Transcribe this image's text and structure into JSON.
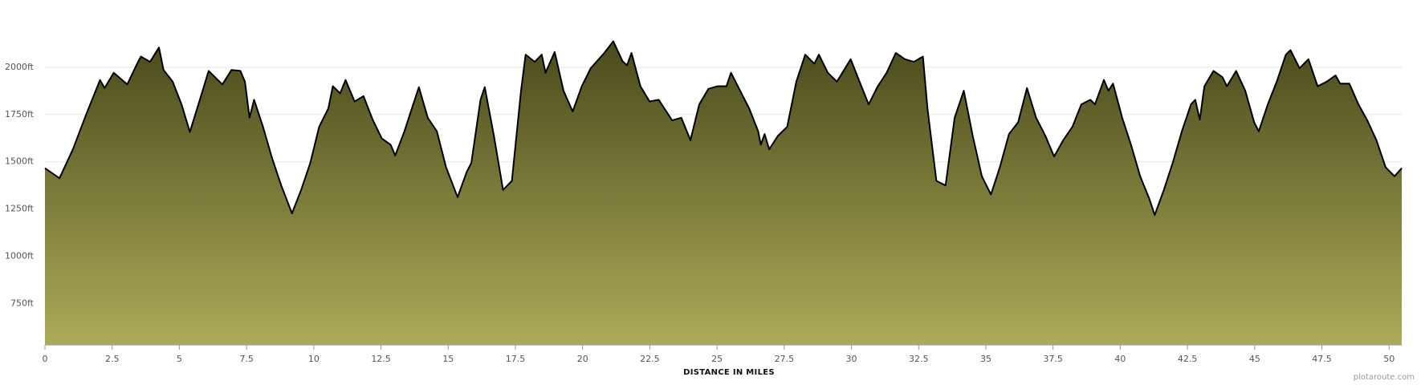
{
  "chart_data": {
    "type": "area",
    "x_label": "DISTANCE IN MILES",
    "credit": "plotaroute.com",
    "fill_gradient": [
      "#4a4a1c",
      "#abab59"
    ],
    "line_color": "#000000",
    "grid": true,
    "xlim": [
      0,
      50.47
    ],
    "ylim": [
      531,
      2250
    ],
    "xticks": [
      0,
      2.5,
      5,
      7.5,
      10,
      12.5,
      15,
      17.5,
      20,
      22.5,
      25,
      27.5,
      30,
      32.5,
      35,
      37.5,
      40,
      42.5,
      45,
      47.5,
      50
    ],
    "yticks": [
      {
        "value": 750,
        "label": "750ft"
      },
      {
        "value": 1000,
        "label": "1000ft"
      },
      {
        "value": 1250,
        "label": "1250ft"
      },
      {
        "value": 1500,
        "label": "1500ft"
      },
      {
        "value": 1750,
        "label": "1750ft"
      },
      {
        "value": 2000,
        "label": "2000ft"
      }
    ],
    "x": [
      0,
      0.54,
      1.04,
      1.55,
      2.05,
      2.22,
      2.56,
      3.06,
      3.4,
      3.57,
      3.91,
      4.24,
      4.41,
      4.75,
      5.08,
      5.39,
      5.76,
      6.09,
      6.6,
      6.94,
      7.27,
      7.44,
      7.61,
      7.78,
      8.11,
      8.45,
      8.79,
      9.19,
      9.53,
      9.87,
      10.2,
      10.54,
      10.71,
      10.98,
      11.18,
      11.52,
      11.85,
      12.19,
      12.53,
      12.86,
      13.03,
      13.37,
      13.7,
      13.91,
      14.24,
      14.58,
      14.92,
      15.35,
      15.69,
      15.86,
      16.2,
      16.36,
      16.7,
      17.04,
      17.37,
      17.71,
      17.88,
      18.22,
      18.48,
      18.62,
      18.96,
      19.29,
      19.63,
      19.97,
      20.3,
      20.81,
      21.14,
      21.48,
      21.65,
      21.82,
      22.15,
      22.49,
      22.83,
      23.33,
      23.67,
      24.01,
      24.34,
      24.68,
      25.02,
      25.35,
      25.52,
      25.86,
      26.2,
      26.53,
      26.63,
      26.77,
      26.94,
      27.27,
      27.61,
      27.95,
      28.28,
      28.62,
      28.79,
      29.12,
      29.46,
      29.97,
      30.3,
      30.64,
      30.98,
      31.31,
      31.65,
      31.99,
      32.32,
      32.66,
      32.83,
      33.16,
      33.5,
      33.84,
      34.18,
      34.51,
      34.85,
      35.19,
      35.52,
      35.86,
      36.2,
      36.53,
      36.87,
      37.21,
      37.54,
      37.88,
      38.22,
      38.55,
      38.89,
      39.06,
      39.39,
      39.56,
      39.73,
      40.07,
      40.4,
      40.74,
      41.08,
      41.28,
      41.62,
      41.95,
      42.29,
      42.63,
      42.79,
      42.96,
      43.13,
      43.47,
      43.8,
      43.97,
      44.31,
      44.65,
      44.98,
      45.15,
      45.49,
      45.82,
      46.16,
      46.33,
      46.67,
      47.0,
      47.34,
      47.68,
      48.01,
      48.18,
      48.52,
      48.86,
      49.19,
      49.53,
      49.87,
      50.2,
      50.47
    ],
    "values": [
      1466,
      1413,
      1566,
      1757,
      1933,
      1890,
      1971,
      1909,
      2010,
      2057,
      2029,
      2105,
      1986,
      1924,
      1804,
      1657,
      1828,
      1981,
      1909,
      1986,
      1981,
      1924,
      1733,
      1828,
      1685,
      1518,
      1375,
      1227,
      1351,
      1494,
      1685,
      1781,
      1900,
      1862,
      1933,
      1819,
      1847,
      1723,
      1623,
      1590,
      1533,
      1661,
      1804,
      1895,
      1733,
      1661,
      1471,
      1313,
      1447,
      1494,
      1828,
      1895,
      1638,
      1351,
      1399,
      1876,
      2067,
      2029,
      2067,
      1971,
      2081,
      1876,
      1766,
      1900,
      1995,
      2076,
      2138,
      2033,
      2010,
      2076,
      1900,
      1819,
      1828,
      1719,
      1733,
      1614,
      1804,
      1886,
      1900,
      1900,
      1971,
      1876,
      1781,
      1661,
      1590,
      1647,
      1566,
      1638,
      1685,
      1924,
      2067,
      2019,
      2067,
      1971,
      1924,
      2043,
      1924,
      1804,
      1900,
      1971,
      2076,
      2043,
      2029,
      2057,
      1781,
      1399,
      1375,
      1733,
      1876,
      1638,
      1423,
      1327,
      1471,
      1647,
      1709,
      1890,
      1733,
      1638,
      1528,
      1614,
      1685,
      1804,
      1828,
      1804,
      1933,
      1876,
      1914,
      1733,
      1590,
      1423,
      1304,
      1218,
      1351,
      1494,
      1661,
      1804,
      1828,
      1723,
      1900,
      1981,
      1948,
      1900,
      1981,
      1876,
      1709,
      1661,
      1804,
      1924,
      2067,
      2091,
      1995,
      2043,
      1900,
      1924,
      1957,
      1914,
      1914,
      1804,
      1719,
      1614,
      1471,
      1423,
      1466
    ]
  }
}
